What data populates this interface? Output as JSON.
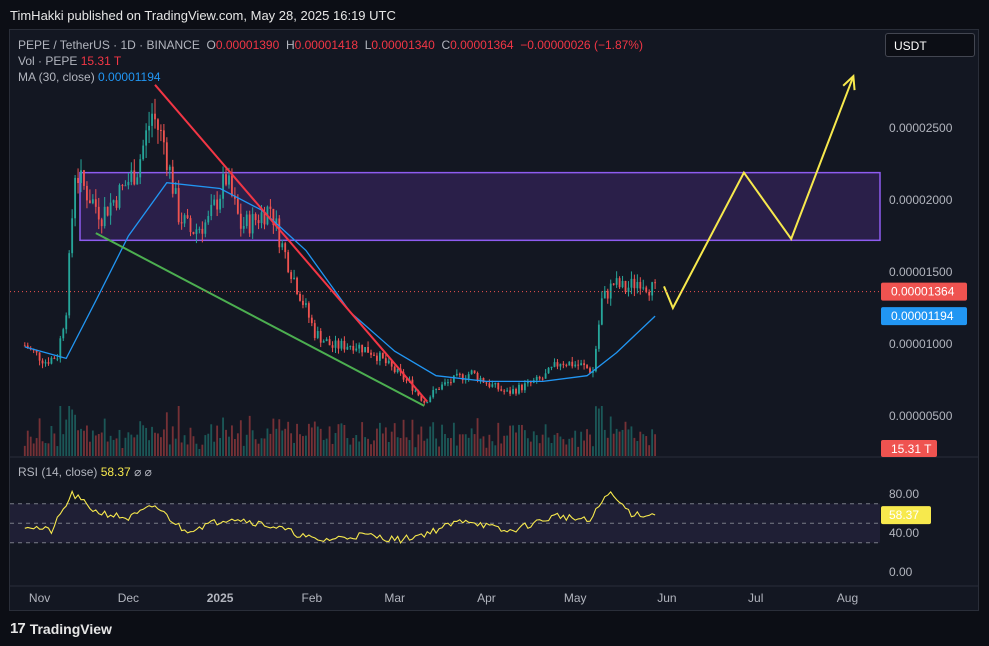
{
  "header": {
    "published_text": "TimHakki published on TradingView.com, May 28, 2025 16:19 UTC"
  },
  "legend": {
    "symbol": "PEPE / TetherUS · 1D · BINANCE",
    "o_label": "O",
    "o_value": "0.00001390",
    "h_label": "H",
    "h_value": "0.00001418",
    "l_label": "L",
    "l_value": "0.00001340",
    "c_label": "C",
    "c_value": "0.00001364",
    "change": "−0.00000026 (−1.87%)",
    "vol_label": "Vol · PEPE",
    "vol_value": "15.31 T",
    "ma_label": "MA (30, close)",
    "ma_value": "0.00001194"
  },
  "currency_button": "USDT",
  "rsi": {
    "label": "RSI (14, close)",
    "value": "58.37",
    "icons": "⌀ ⌀"
  },
  "brand": {
    "logo": "17",
    "name": "TradingView"
  },
  "colors": {
    "up": "#26a69a",
    "down": "#ef5350",
    "ma": "#2196f3",
    "zone": "#7e3fd6",
    "yellow": "#f7e94d",
    "red_line": "#f23645",
    "green_line": "#4caf50"
  },
  "chart_data": {
    "type": "candlestick",
    "symbol": "PEPE / TetherUS",
    "interval": "1D",
    "x_ticks": [
      "Nov",
      "Dec",
      "2025",
      "Feb",
      "Mar",
      "Apr",
      "May",
      "Jun",
      "Jul",
      "Aug"
    ],
    "y_ticks": [
      "0.00002500",
      "0.00002000",
      "0.00001500",
      "0.00001000",
      "0.00000500"
    ],
    "ylim": [
      3e-06,
      2.9e-05
    ],
    "price_tag": "0.00001364",
    "ma_tag": "0.00001194",
    "volume_tag": "15.31 T",
    "price_path": [
      [
        "2024-10-27",
        9.9e-06
      ],
      [
        "2024-11-03",
        8.8e-06
      ],
      [
        "2024-11-07",
        9.2e-06
      ],
      [
        "2024-11-10",
        1.25e-05
      ],
      [
        "2024-11-13",
        2.2e-05
      ],
      [
        "2024-11-17",
        2.05e-05
      ],
      [
        "2024-11-22",
        1.9e-05
      ],
      [
        "2024-11-28",
        2.05e-05
      ],
      [
        "2024-12-04",
        2.22e-05
      ],
      [
        "2024-12-09",
        2.6e-05
      ],
      [
        "2024-12-13",
        2.4e-05
      ],
      [
        "2024-12-18",
        1.9e-05
      ],
      [
        "2024-12-22",
        1.78e-05
      ],
      [
        "2024-12-28",
        1.85e-05
      ],
      [
        "2025-01-03",
        2.15e-05
      ],
      [
        "2025-01-08",
        1.82e-05
      ],
      [
        "2025-01-12",
        1.85e-05
      ],
      [
        "2025-01-18",
        1.95e-05
      ],
      [
        "2025-01-22",
        1.68e-05
      ],
      [
        "2025-01-27",
        1.4e-05
      ],
      [
        "2025-02-02",
        1.08e-05
      ],
      [
        "2025-02-08",
        9.8e-06
      ],
      [
        "2025-02-15",
        1e-05
      ],
      [
        "2025-02-22",
        9.4e-06
      ],
      [
        "2025-02-28",
        8.3e-06
      ],
      [
        "2025-03-06",
        7.3e-06
      ],
      [
        "2025-03-11",
        6e-06
      ],
      [
        "2025-03-16",
        7e-06
      ],
      [
        "2025-03-23",
        7.7e-06
      ],
      [
        "2025-03-27",
        8e-06
      ],
      [
        "2025-04-02",
        7.2e-06
      ],
      [
        "2025-04-08",
        6.6e-06
      ],
      [
        "2025-04-14",
        7.1e-06
      ],
      [
        "2025-04-20",
        7.6e-06
      ],
      [
        "2025-04-26",
        8.8e-06
      ],
      [
        "2025-05-03",
        8.5e-06
      ],
      [
        "2025-05-07",
        8.1e-06
      ],
      [
        "2025-05-10",
        1.3e-05
      ],
      [
        "2025-05-14",
        1.42e-05
      ],
      [
        "2025-05-18",
        1.38e-05
      ],
      [
        "2025-05-23",
        1.45e-05
      ],
      [
        "2025-05-28",
        1.364e-05
      ]
    ],
    "ma_path": [
      [
        "2024-10-27",
        9.8e-06
      ],
      [
        "2024-11-10",
        9e-06
      ],
      [
        "2024-11-20",
        1.3e-05
      ],
      [
        "2024-12-01",
        1.75e-05
      ],
      [
        "2024-12-14",
        2.12e-05
      ],
      [
        "2025-01-01",
        2.08e-05
      ],
      [
        "2025-01-15",
        1.93e-05
      ],
      [
        "2025-01-30",
        1.65e-05
      ],
      [
        "2025-02-14",
        1.22e-05
      ],
      [
        "2025-03-01",
        9.5e-06
      ],
      [
        "2025-03-15",
        7.8e-06
      ],
      [
        "2025-04-01",
        7.4e-06
      ],
      [
        "2025-04-20",
        7.4e-06
      ],
      [
        "2025-05-05",
        7.8e-06
      ],
      [
        "2025-05-15",
        9.4e-06
      ],
      [
        "2025-05-28",
        1.194e-05
      ]
    ],
    "resistance_zone": [
      1.72e-05,
      2.19e-05
    ],
    "red_trendline": [
      [
        "2024-12-10",
        2.8e-05
      ],
      [
        "2025-03-12",
        6e-06
      ]
    ],
    "green_trendline": [
      [
        "2024-11-20",
        1.77e-05
      ],
      [
        "2025-03-11",
        5.7e-06
      ]
    ],
    "projection_path": [
      [
        "2025-05-31",
        1.4e-05
      ],
      [
        "2025-06-03",
        1.25e-05
      ],
      [
        "2025-06-27",
        2.19e-05
      ],
      [
        "2025-07-13",
        1.73e-05
      ],
      [
        "2025-08-03",
        2.86e-05
      ]
    ],
    "rsi": {
      "label": "RSI (14, close)",
      "value": 58.37,
      "y_ticks": [
        "80.00",
        "40.00",
        "0.00"
      ],
      "bands": [
        70,
        30
      ],
      "path": [
        [
          "2024-10-27",
          48
        ],
        [
          "2024-11-05",
          42
        ],
        [
          "2024-11-12",
          80
        ],
        [
          "2024-11-20",
          62
        ],
        [
          "2024-12-01",
          55
        ],
        [
          "2024-12-10",
          68
        ],
        [
          "2024-12-20",
          42
        ],
        [
          "2025-01-05",
          56
        ],
        [
          "2025-01-20",
          46
        ],
        [
          "2025-02-03",
          32
        ],
        [
          "2025-02-18",
          38
        ],
        [
          "2025-03-03",
          33
        ],
        [
          "2025-03-12",
          40
        ],
        [
          "2025-03-25",
          54
        ],
        [
          "2025-04-08",
          41
        ],
        [
          "2025-04-25",
          58
        ],
        [
          "2025-05-06",
          52
        ],
        [
          "2025-05-12",
          82
        ],
        [
          "2025-05-20",
          60
        ],
        [
          "2025-05-28",
          58.37
        ]
      ]
    }
  }
}
